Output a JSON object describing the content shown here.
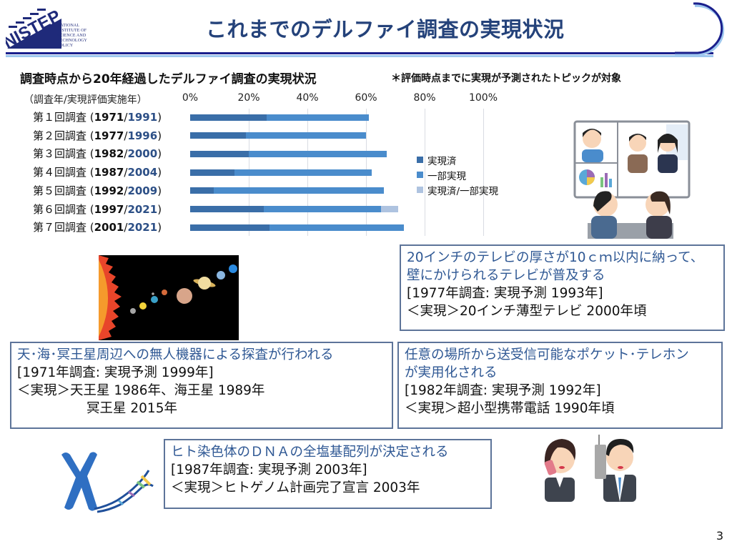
{
  "header": {
    "title": "これまでのデルファイ調査の実現状況",
    "logo_text": "NISTEP",
    "logo_subtitle": [
      "NATIONAL",
      "INSTITUTE OF",
      "SCIENCE AND",
      "TECHNOLOGY",
      "POLICY"
    ]
  },
  "chart_section": {
    "title": "調査時点から20年経過したデルファイ調査の実現状況",
    "note": "＊評価時点までに実現が予測されたトピックが対象",
    "row_axis_label": "（調査年/実現評価実施年）"
  },
  "chart_data": {
    "type": "bar",
    "orientation": "horizontal",
    "stacked": true,
    "title": "調査時点から20年経過したデルファイ調査の実現状況",
    "subtitle": "＊評価時点までに実現が予測されたトピックが対象",
    "xlabel": "",
    "ylabel": "（調査年/実現評価実施年）",
    "xlim": [
      0,
      100
    ],
    "x_ticks": [
      "0%",
      "20%",
      "40%",
      "60%",
      "80%",
      "100%"
    ],
    "grid": true,
    "legend_position": "right",
    "categories": [
      "第１回調査 (1971/1991)",
      "第２回調査 (1977/1996)",
      "第３回調査 (1982/2000)",
      "第４回調査 (1987/2004)",
      "第５回調査 (1992/2009)",
      "第６回調査 (1997/2021)",
      "第７回調査 (2001/2021)"
    ],
    "rows": [
      {
        "prefix": "第１回調査",
        "survey_year": "1971",
        "eval_year": "1991"
      },
      {
        "prefix": "第２回調査",
        "survey_year": "1977",
        "eval_year": "1996"
      },
      {
        "prefix": "第３回調査",
        "survey_year": "1982",
        "eval_year": "2000"
      },
      {
        "prefix": "第４回調査",
        "survey_year": "1987",
        "eval_year": "2004"
      },
      {
        "prefix": "第５回調査",
        "survey_year": "1992",
        "eval_year": "2009"
      },
      {
        "prefix": "第６回調査",
        "survey_year": "1997",
        "eval_year": "2021"
      },
      {
        "prefix": "第７回調査",
        "survey_year": "2001",
        "eval_year": "2021"
      }
    ],
    "series": [
      {
        "name": "実現済",
        "color": "#3a6ea8",
        "values": [
          26,
          19,
          20,
          15,
          8,
          25,
          27
        ]
      },
      {
        "name": "一部実現",
        "color": "#4a8ccc",
        "values": [
          35,
          41,
          47,
          47,
          58,
          40,
          46
        ]
      },
      {
        "name": "実現済/一部実現",
        "color": "#aec3e0",
        "values": [
          0,
          0,
          0,
          0,
          0,
          6,
          0
        ]
      }
    ]
  },
  "cards": {
    "tv": {
      "lead": [
        "20インチのテレビの厚さが10ｃｍ以内に納って、",
        "壁にかけられるテレビが普及する"
      ],
      "forecast": "[1977年調査: 実現予測 1993年]",
      "realized": "＜実現＞20インチ薄型テレビ 2000年頃"
    },
    "space": {
      "lead": [
        "天･海･冥王星周辺への無人機器による探査が行われる"
      ],
      "forecast": "[1971年調査: 実現予測 1999年]",
      "realized": "＜実現＞天王星 1986年、海王星 1989年",
      "realized_cont": "冥王星 2015年"
    },
    "phone": {
      "lead": [
        "任意の場所から送受信可能なポケット･テレホン",
        "が実用化される"
      ],
      "forecast": "[1982年調査: 実現予測 1992年]",
      "realized": "＜実現＞超小型携帯電話 1990年頃"
    },
    "dna": {
      "lead": [
        "ヒト染色体のＤＮＡの全塩基配列が決定される"
      ],
      "forecast": "[1987年調査: 実現予測 2003年]",
      "realized": "＜実現＞ヒトゲノム計画完了宣言 2003年"
    }
  },
  "footer": {
    "page_number": "3"
  }
}
